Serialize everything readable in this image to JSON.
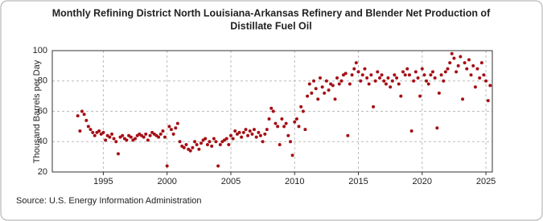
{
  "chart_data": {
    "type": "scatter",
    "title_lines": [
      "Monthly Refining District North Louisiana-Arkansas Refinery and Blender Net Production of",
      "Distillate Fuel Oil"
    ],
    "y_label": "Thousand Barrels per Day",
    "source": "Source: U.S. Energy Information Administration",
    "color": "#a50f15",
    "grid": true,
    "xlim": [
      1991,
      2025.5
    ],
    "ylim": [
      20,
      100
    ],
    "xticks": [
      1995,
      2000,
      2005,
      2010,
      2015,
      2020,
      2025
    ],
    "yticks": [
      20,
      40,
      60,
      80,
      100
    ],
    "x": [
      1993.0,
      1993.17,
      1993.33,
      1993.5,
      1993.67,
      1993.83,
      1994.0,
      1994.17,
      1994.33,
      1994.5,
      1994.67,
      1994.83,
      1995.0,
      1995.17,
      1995.33,
      1995.5,
      1995.67,
      1995.83,
      1996.0,
      1996.17,
      1996.33,
      1996.5,
      1996.67,
      1996.83,
      1997.0,
      1997.17,
      1997.33,
      1997.5,
      1997.67,
      1997.83,
      1998.0,
      1998.17,
      1998.33,
      1998.5,
      1998.67,
      1998.83,
      1999.0,
      1999.17,
      1999.33,
      1999.5,
      1999.67,
      1999.83,
      2000.0,
      2000.17,
      2000.33,
      2000.5,
      2000.67,
      2000.83,
      2001.0,
      2001.17,
      2001.33,
      2001.5,
      2001.67,
      2001.83,
      2002.0,
      2002.17,
      2002.33,
      2002.5,
      2002.67,
      2002.83,
      2003.0,
      2003.17,
      2003.33,
      2003.5,
      2003.67,
      2003.83,
      2004.0,
      2004.17,
      2004.33,
      2004.5,
      2004.67,
      2004.83,
      2005.0,
      2005.17,
      2005.33,
      2005.5,
      2005.67,
      2005.83,
      2006.0,
      2006.17,
      2006.33,
      2006.5,
      2006.67,
      2006.83,
      2007.0,
      2007.17,
      2007.33,
      2007.5,
      2007.67,
      2007.83,
      2008.0,
      2008.17,
      2008.33,
      2008.5,
      2008.67,
      2008.83,
      2009.0,
      2009.17,
      2009.33,
      2009.5,
      2009.67,
      2009.83,
      2010.0,
      2010.17,
      2010.33,
      2010.5,
      2010.67,
      2010.83,
      2011.0,
      2011.17,
      2011.33,
      2011.5,
      2011.67,
      2011.83,
      2012.0,
      2012.17,
      2012.33,
      2012.5,
      2012.67,
      2012.83,
      2013.0,
      2013.17,
      2013.33,
      2013.5,
      2013.67,
      2013.83,
      2014.0,
      2014.17,
      2014.33,
      2014.5,
      2014.67,
      2014.83,
      2015.0,
      2015.17,
      2015.33,
      2015.5,
      2015.67,
      2015.83,
      2016.0,
      2016.17,
      2016.33,
      2016.5,
      2016.67,
      2016.83,
      2017.0,
      2017.17,
      2017.33,
      2017.5,
      2017.67,
      2017.83,
      2018.0,
      2018.17,
      2018.33,
      2018.5,
      2018.67,
      2018.83,
      2019.0,
      2019.17,
      2019.33,
      2019.5,
      2019.67,
      2019.83,
      2020.0,
      2020.17,
      2020.33,
      2020.5,
      2020.67,
      2020.83,
      2021.0,
      2021.17,
      2021.33,
      2021.5,
      2021.67,
      2021.83,
      2022.0,
      2022.17,
      2022.33,
      2022.5,
      2022.67,
      2022.83,
      2023.0,
      2023.17,
      2023.33,
      2023.5,
      2023.67,
      2023.83,
      2024.0,
      2024.17,
      2024.33,
      2024.5,
      2024.67,
      2024.83,
      2025.0,
      2025.17,
      2025.33
    ],
    "values": [
      57,
      47,
      60,
      58,
      54,
      50,
      48,
      46,
      44,
      46,
      47,
      45,
      46,
      41,
      44,
      43,
      45,
      42,
      40,
      32,
      43,
      44,
      42,
      41,
      44,
      43,
      41,
      42,
      44,
      45,
      44,
      43,
      45,
      41,
      44,
      46,
      45,
      44,
      43,
      45,
      47,
      43,
      24,
      50,
      48,
      45,
      49,
      52,
      40,
      37,
      36,
      38,
      35,
      34,
      36,
      40,
      38,
      35,
      39,
      41,
      42,
      38,
      40,
      37,
      42,
      40,
      24,
      38,
      40,
      41,
      42,
      38,
      44,
      42,
      47,
      45,
      46,
      43,
      46,
      48,
      44,
      47,
      45,
      48,
      43,
      46,
      44,
      40,
      45,
      48,
      55,
      62,
      60,
      52,
      50,
      38,
      55,
      50,
      52,
      44,
      40,
      31,
      53,
      55,
      50,
      63,
      60,
      48,
      70,
      78,
      72,
      80,
      75,
      68,
      82,
      76,
      72,
      80,
      74,
      78,
      77,
      68,
      82,
      78,
      80,
      84,
      85,
      44,
      78,
      84,
      88,
      92,
      86,
      80,
      84,
      88,
      82,
      78,
      84,
      63,
      80,
      86,
      82,
      84,
      80,
      78,
      82,
      76,
      80,
      84,
      82,
      78,
      70,
      86,
      84,
      88,
      84,
      47,
      80,
      86,
      82,
      70,
      88,
      84,
      80,
      78,
      84,
      86,
      82,
      49,
      72,
      84,
      80,
      86,
      88,
      92,
      98,
      95,
      86,
      90,
      96,
      68,
      92,
      88,
      94,
      84,
      90,
      76,
      88,
      82,
      92,
      84,
      80,
      67,
      77
    ]
  }
}
